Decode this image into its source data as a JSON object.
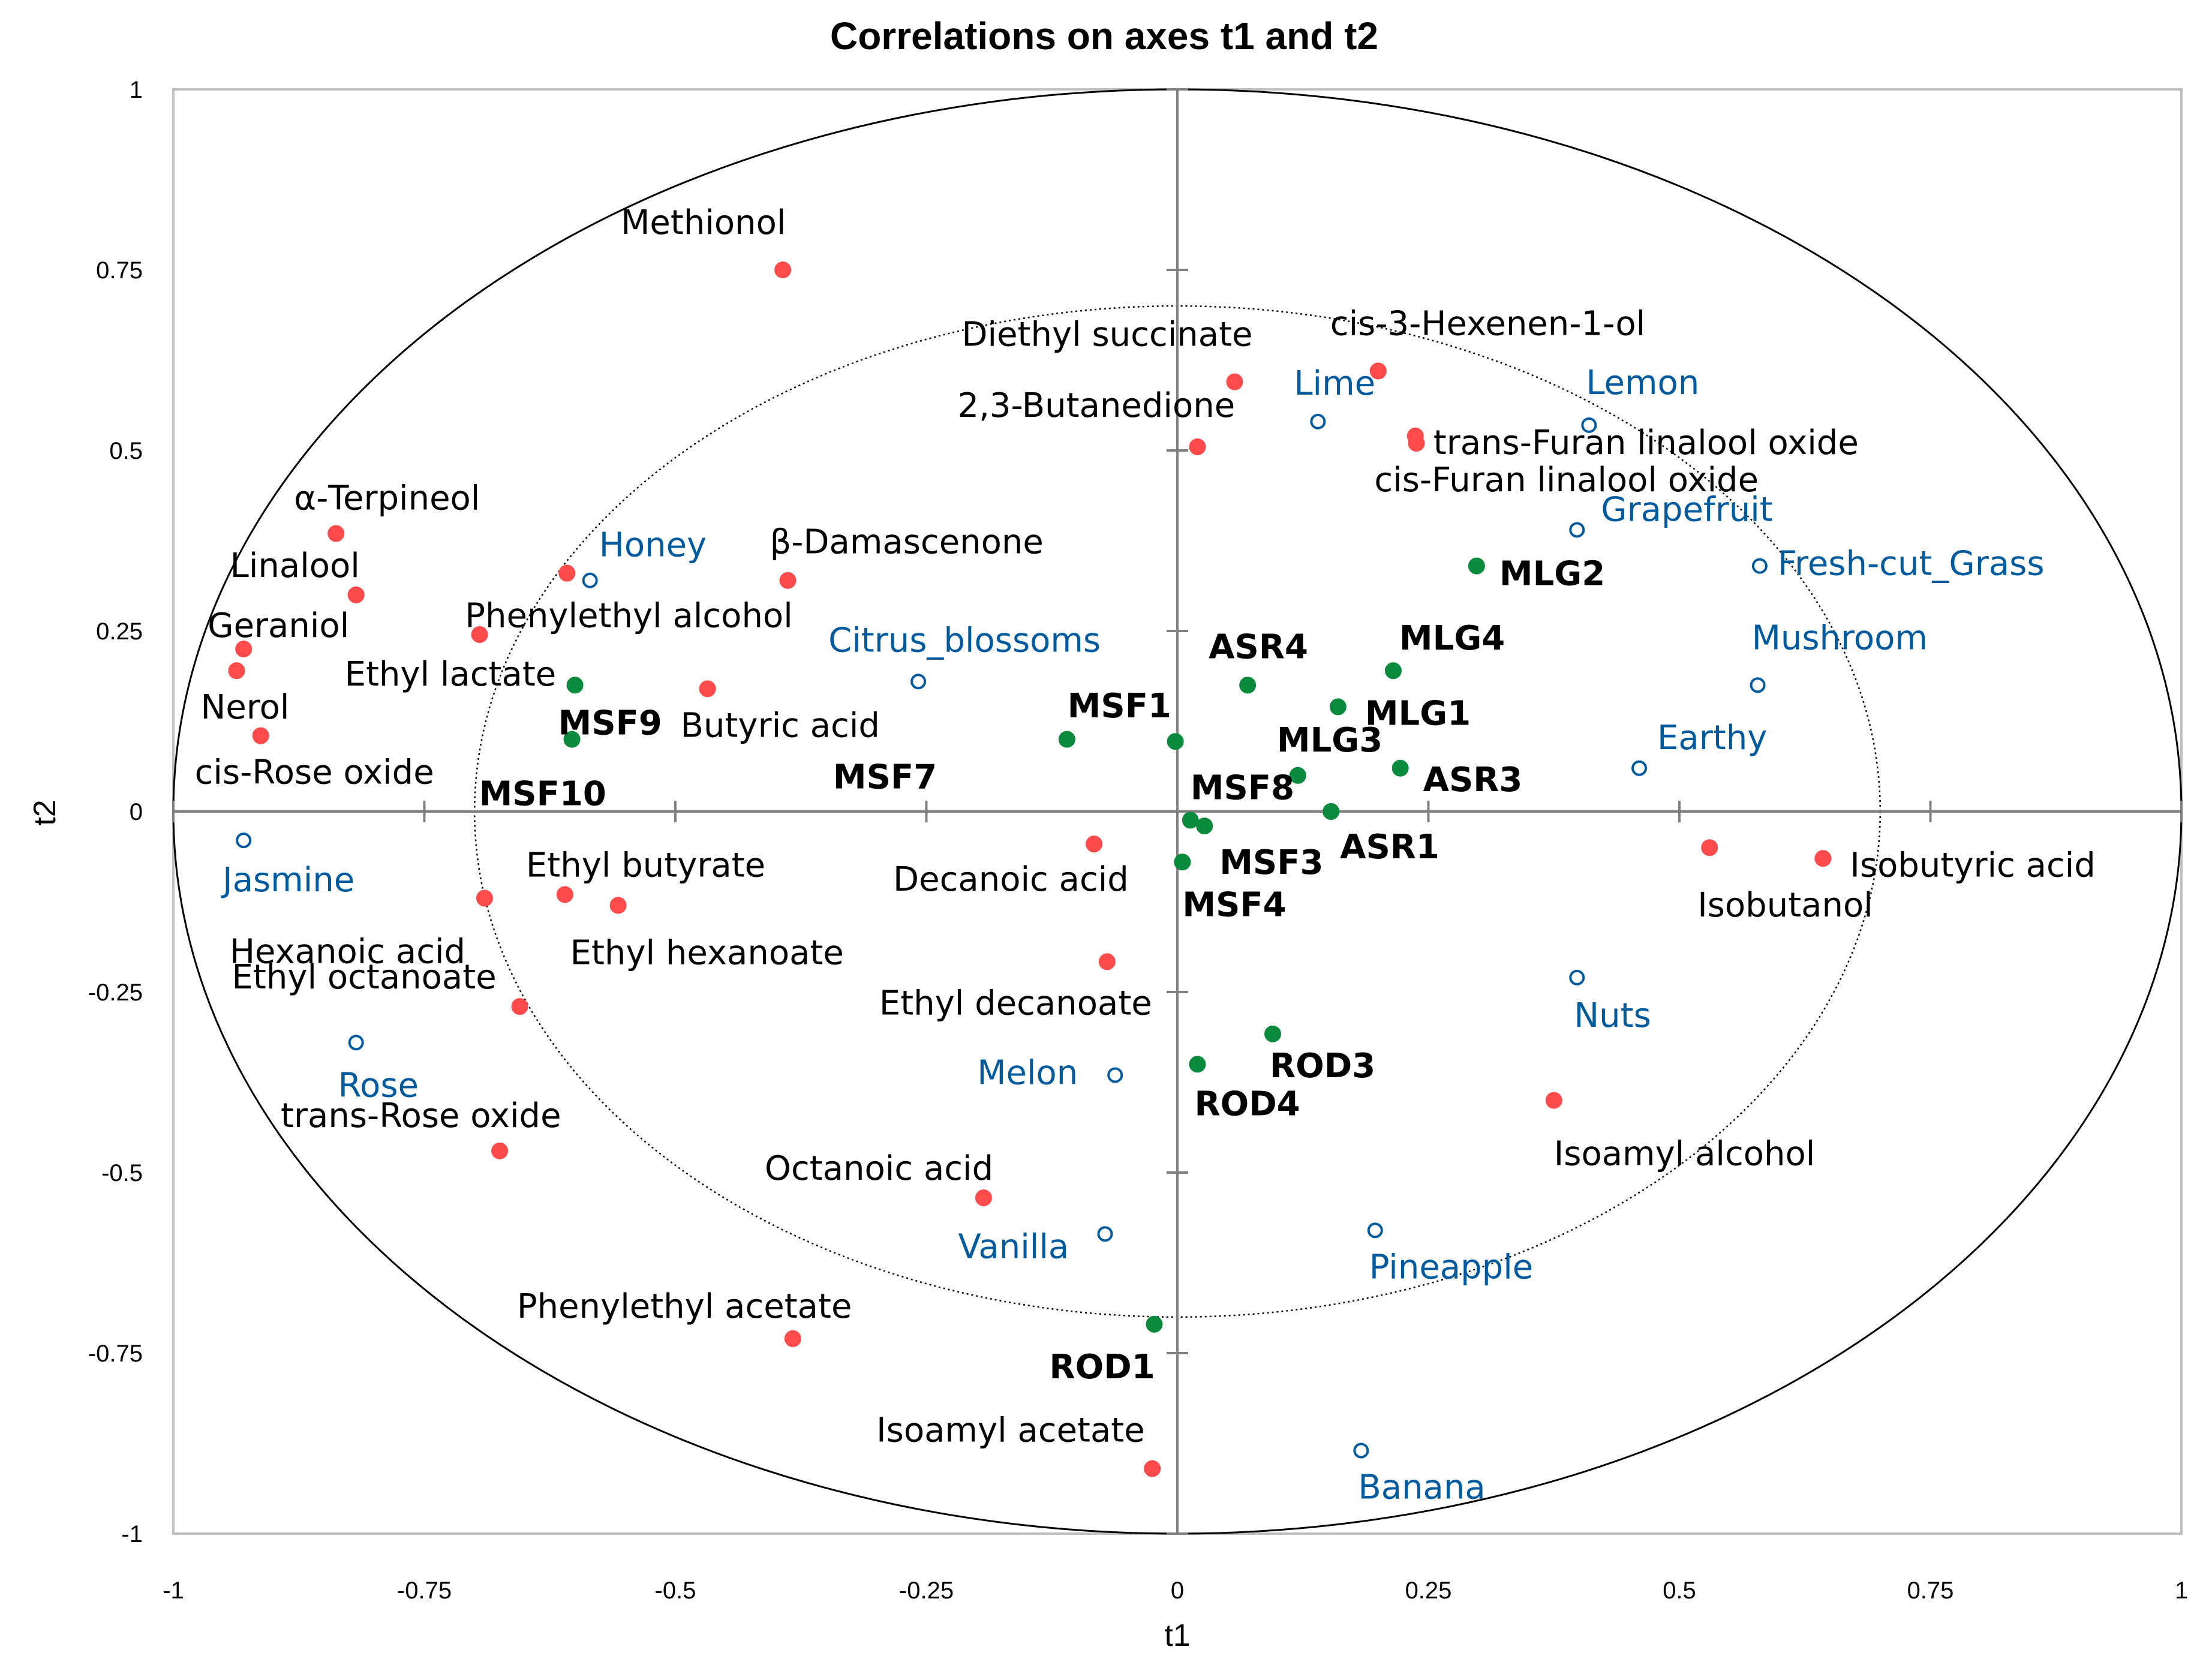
{
  "chart_data": {
    "type": "scatter",
    "title": "Correlations on axes t1 and t2",
    "xlabel": "t1",
    "ylabel": "t2",
    "xlim": [
      -1,
      1
    ],
    "ylim": [
      -1,
      1
    ],
    "x_ticks": [
      "-1",
      "-0.75",
      "-0.5",
      "-0.25",
      "0",
      "0.25",
      "0.5",
      "0.75",
      "1"
    ],
    "y_ticks": [
      "-1",
      "-0.75",
      "-0.5",
      "-0.25",
      "0",
      "0.25",
      "0.5",
      "0.75",
      "1"
    ],
    "colors": {
      "compounds": "#ff4b4b",
      "samples": "#0a8a3c",
      "descriptors": "#005a9e",
      "sample_label": "#000000"
    },
    "series": [
      {
        "points": [
          {
            "label": "Methionol",
            "x": -0.393,
            "y": 0.75
          },
          {
            "label": "Diethyl succinate",
            "x": 0.057,
            "y": 0.595
          },
          {
            "label": "cis-3-Hexenen-1-ol",
            "x": 0.2,
            "y": 0.61
          },
          {
            "label": "2,3-Butanedione",
            "x": 0.02,
            "y": 0.505
          },
          {
            "label": "trans-Furan linalool oxide",
            "x": 0.237,
            "y": 0.52
          },
          {
            "label": "cis-Furan linalool oxide",
            "x": 0.238,
            "y": 0.51
          },
          {
            "label": "α-Terpineol",
            "x": -0.838,
            "y": 0.385
          },
          {
            "label": "Linalool",
            "x": -0.818,
            "y": 0.3
          },
          {
            "label": "β-Damascenone",
            "x": -0.388,
            "y": 0.32
          },
          {
            "label": "Phenylethyl alcohol",
            "x": -0.608,
            "y": 0.33
          },
          {
            "label": "Geraniol",
            "x": -0.93,
            "y": 0.225
          },
          {
            "label": "Ethyl lactate",
            "x": -0.695,
            "y": 0.245
          },
          {
            "label": "Nerol",
            "x": -0.937,
            "y": 0.195
          },
          {
            "label": "Butyric acid",
            "x": -0.468,
            "y": 0.17
          },
          {
            "label": "cis-Rose oxide",
            "x": -0.913,
            "y": 0.105
          },
          {
            "label": "Decanoic acid",
            "x": -0.083,
            "y": -0.045
          },
          {
            "label": "Isobutanol",
            "x": 0.53,
            "y": -0.05
          },
          {
            "label": "Isobutyric acid",
            "x": 0.643,
            "y": -0.065
          },
          {
            "label": "Ethyl butyrate",
            "x": -0.61,
            "y": -0.115
          },
          {
            "label": "Hexanoic acid",
            "x": -0.69,
            "y": -0.12
          },
          {
            "label": "Ethyl hexanoate",
            "x": -0.557,
            "y": -0.13
          },
          {
            "label": "Ethyl decanoate",
            "x": -0.07,
            "y": -0.208
          },
          {
            "label": "Ethyl octanoate",
            "x": -0.655,
            "y": -0.27
          },
          {
            "label": "Isoamyl alcohol",
            "x": 0.375,
            "y": -0.4
          },
          {
            "label": "trans-Rose oxide",
            "x": -0.675,
            "y": -0.47
          },
          {
            "label": "Octanoic acid",
            "x": -0.193,
            "y": -0.535
          },
          {
            "label": "Phenylethyl acetate",
            "x": -0.383,
            "y": -0.73
          },
          {
            "label": "Isoamyl acetate",
            "x": -0.025,
            "y": -0.91
          }
        ]
      },
      {
        "points": [
          {
            "label": "MLG2",
            "x": 0.298,
            "y": 0.34
          },
          {
            "label": "MLG4",
            "x": 0.215,
            "y": 0.195
          },
          {
            "label": "ASR4",
            "x": 0.07,
            "y": 0.175
          },
          {
            "label": "MLG1",
            "x": 0.16,
            "y": 0.145
          },
          {
            "label": "MSF9",
            "x": -0.6,
            "y": 0.175
          },
          {
            "label": "MSF10",
            "x": -0.603,
            "y": 0.1
          },
          {
            "label": "MSF1",
            "x": -0.002,
            "y": 0.097
          },
          {
            "label": "MSF7",
            "x": -0.11,
            "y": 0.1
          },
          {
            "label": "ASR3",
            "x": 0.222,
            "y": 0.06
          },
          {
            "label": "MLG3",
            "x": 0.12,
            "y": 0.05
          },
          {
            "label": "ASR1",
            "x": 0.153,
            "y": 0.0
          },
          {
            "label": "MSF8",
            "x": 0.013,
            "y": -0.012
          },
          {
            "label": "MSF3",
            "x": 0.027,
            "y": -0.02
          },
          {
            "label": "MSF4",
            "x": 0.005,
            "y": -0.07
          },
          {
            "label": "ROD3",
            "x": 0.095,
            "y": -0.308
          },
          {
            "label": "ROD4",
            "x": 0.02,
            "y": -0.35
          },
          {
            "label": "ROD1",
            "x": -0.023,
            "y": -0.71
          }
        ]
      },
      {
        "points": [
          {
            "label": "Lime",
            "x": 0.14,
            "y": 0.54
          },
          {
            "label": "Lemon",
            "x": 0.41,
            "y": 0.535
          },
          {
            "label": "Grapefruit",
            "x": 0.398,
            "y": 0.39
          },
          {
            "label": "Fresh-cut_Grass",
            "x": 0.58,
            "y": 0.34
          },
          {
            "label": "Honey",
            "x": -0.585,
            "y": 0.32
          },
          {
            "label": "Mushroom",
            "x": 0.578,
            "y": 0.175
          },
          {
            "label": "Citrus_blossoms",
            "x": -0.258,
            "y": 0.18
          },
          {
            "label": "Earthy",
            "x": 0.46,
            "y": 0.06
          },
          {
            "label": "Jasmine",
            "x": -0.93,
            "y": -0.04
          },
          {
            "label": "Nuts",
            "x": 0.398,
            "y": -0.23
          },
          {
            "label": "Rose",
            "x": -0.818,
            "y": -0.32
          },
          {
            "label": "Melon",
            "x": -0.062,
            "y": -0.365
          },
          {
            "label": "Pineapple",
            "x": 0.197,
            "y": -0.58
          },
          {
            "label": "Vanilla",
            "x": -0.072,
            "y": -0.585
          },
          {
            "label": "Banana",
            "x": 0.183,
            "y": -0.885
          }
        ]
      }
    ],
    "circles": [
      1.0,
      0.7
    ],
    "grid": false
  }
}
